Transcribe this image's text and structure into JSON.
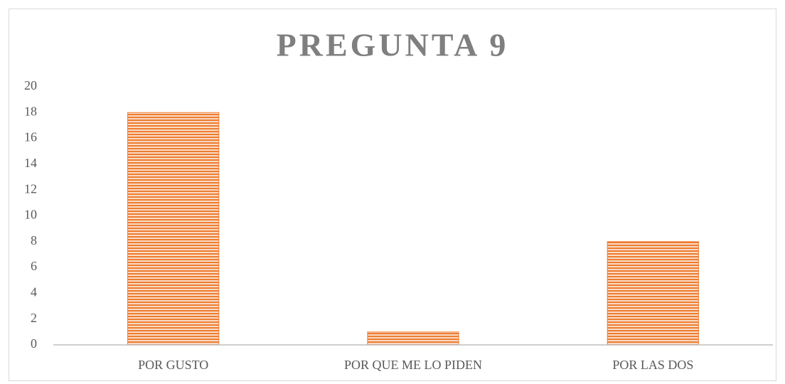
{
  "chart_data": {
    "type": "bar",
    "title": "PREGUNTA 9",
    "categories": [
      "POR GUSTO",
      "POR QUE ME LO PIDEN",
      "POR LAS DOS"
    ],
    "values": [
      18,
      1,
      8
    ],
    "color": "#ed7d31",
    "ylim": [
      0,
      20
    ],
    "yticks": [
      0,
      2,
      4,
      6,
      8,
      10,
      12,
      14,
      16,
      18,
      20
    ],
    "grid": false
  }
}
